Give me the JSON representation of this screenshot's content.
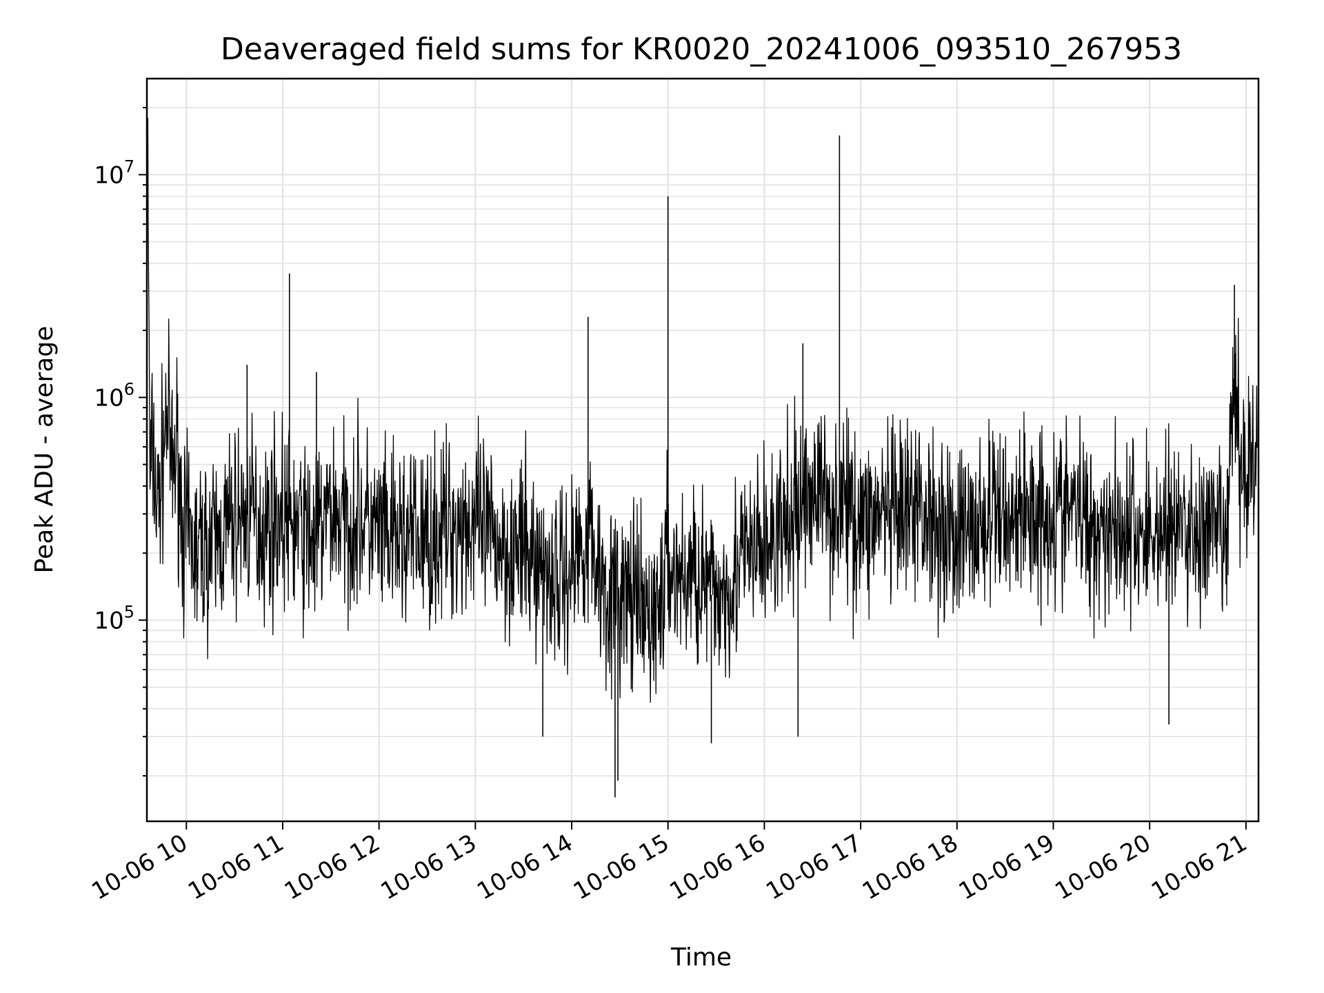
{
  "chart_data": {
    "type": "line",
    "title": "Deaveraged field sums for KR0020_20241006_093510_267953",
    "xlabel": "Time",
    "ylabel": "Peak ADU - average",
    "x_tick_labels": [
      "10-06 10",
      "10-06 11",
      "10-06 12",
      "10-06 13",
      "10-06 14",
      "10-06 15",
      "10-06 16",
      "10-06 17",
      "10-06 18",
      "10-06 19",
      "10-06 20",
      "10-06 21"
    ],
    "x_ticks_hours": [
      10,
      11,
      12,
      13,
      14,
      15,
      16,
      17,
      18,
      19,
      20,
      21
    ],
    "xlim_hours": [
      9.59,
      21.13
    ],
    "y_scale": "log",
    "ylim": [
      12500,
      27000000
    ],
    "y_ticks": [
      {
        "base": "10",
        "exp": "5",
        "value": 100000
      },
      {
        "base": "10",
        "exp": "6",
        "value": 1000000
      },
      {
        "base": "10",
        "exp": "7",
        "value": 10000000
      }
    ],
    "grid": true,
    "series_color": "#000000",
    "series": [
      {
        "x_hours": [
          9.6,
          9.62,
          9.65,
          9.7,
          9.75,
          9.8,
          9.85,
          9.9,
          9.97,
          10.1,
          10.3,
          10.5,
          10.65,
          10.8,
          10.95,
          11.07,
          11.2,
          11.35,
          11.5,
          11.65,
          11.8,
          11.95,
          12.1,
          12.3,
          12.5,
          12.7,
          12.9,
          13.1,
          13.3,
          13.5,
          13.7,
          13.9,
          14.05,
          14.17,
          14.3,
          14.45,
          14.6,
          14.75,
          14.9,
          15.0,
          15.15,
          15.3,
          15.45,
          15.6,
          15.75,
          15.9,
          16.05,
          16.2,
          16.35,
          16.4,
          16.55,
          16.7,
          16.78,
          16.9,
          17.05,
          17.2,
          17.4,
          17.6,
          17.8,
          18.0,
          18.2,
          18.4,
          18.6,
          18.8,
          19.0,
          19.2,
          19.4,
          19.6,
          19.8,
          20.0,
          20.2,
          20.4,
          20.6,
          20.8,
          20.88,
          20.95,
          21.05,
          21.12
        ],
        "y_values": [
          18000000,
          400000,
          600000,
          300000,
          500000,
          900000,
          450000,
          600000,
          250000,
          200000,
          220000,
          280000,
          300000,
          260000,
          300000,
          280000,
          250000,
          230000,
          320000,
          270000,
          300000,
          250000,
          220000,
          240000,
          230000,
          260000,
          280000,
          240000,
          220000,
          200000,
          180000,
          150000,
          200000,
          250000,
          160000,
          120000,
          130000,
          100000,
          110000,
          180000,
          150000,
          170000,
          130000,
          140000,
          180000,
          200000,
          220000,
          250000,
          300000,
          350000,
          400000,
          320000,
          350000,
          300000,
          280000,
          300000,
          270000,
          320000,
          280000,
          240000,
          260000,
          290000,
          300000,
          310000,
          300000,
          320000,
          260000,
          280000,
          250000,
          240000,
          270000,
          250000,
          240000,
          230000,
          1200000,
          450000,
          550000,
          600000
        ]
      }
    ],
    "spikes": [
      {
        "x_hour": 11.07,
        "y": 3600000
      },
      {
        "x_hour": 10.63,
        "y": 1400000
      },
      {
        "x_hour": 11.35,
        "y": 1300000
      },
      {
        "x_hour": 14.17,
        "y": 2300000
      },
      {
        "x_hour": 15.0,
        "y": 8000000
      },
      {
        "x_hour": 16.4,
        "y": 1750000
      },
      {
        "x_hour": 16.78,
        "y": 15000000
      },
      {
        "x_hour": 20.88,
        "y": 3200000
      },
      {
        "x_hour": 14.45,
        "y": 16000
      },
      {
        "x_hour": 14.48,
        "y": 19000
      },
      {
        "x_hour": 20.2,
        "y": 34000
      },
      {
        "x_hour": 13.7,
        "y": 30000
      },
      {
        "x_hour": 15.45,
        "y": 28000
      },
      {
        "x_hour": 16.35,
        "y": 30000
      }
    ]
  }
}
